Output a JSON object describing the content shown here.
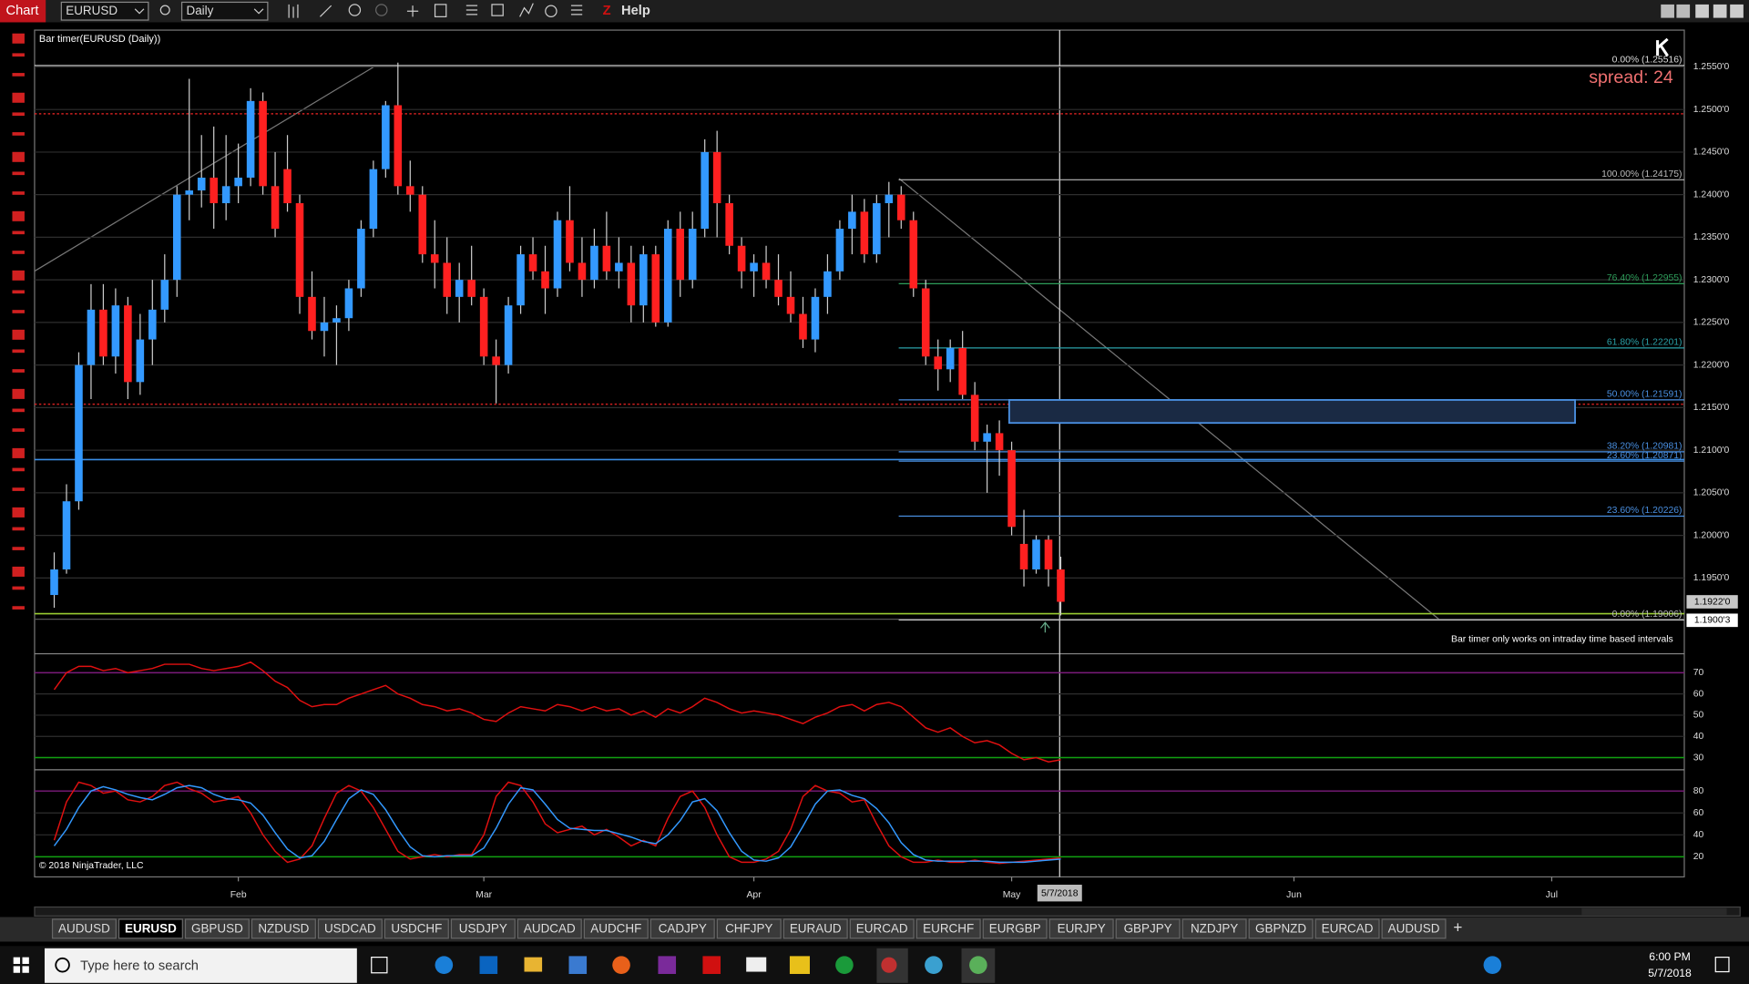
{
  "toolbar": {
    "title": "Chart",
    "instrument": "EURUSD",
    "interval": "Daily",
    "help": "Help"
  },
  "chart": {
    "type": "candlestick",
    "indicator_label": "Bar timer(EURUSD (Daily))",
    "spread": "spread: 24",
    "notice": "Bar timer only works on intraday time based intervals",
    "copyright": "© 2018 NinjaTrader, LLC",
    "cursor_date": "5/7/2018",
    "xlim": [
      -1.6,
      132.8
    ],
    "xticks": [
      {
        "value": 15,
        "label": "Feb"
      },
      {
        "value": 35,
        "label": "Mar"
      },
      {
        "value": 57,
        "label": "Apr"
      },
      {
        "value": 78,
        "label": "May"
      },
      {
        "value": 101,
        "label": "Jun"
      },
      {
        "value": 122,
        "label": "Jul"
      }
    ],
    "ylim": [
      1.18623,
      1.25932
    ],
    "yticks": [
      {
        "value": 1.255,
        "label": "1.2550'0"
      },
      {
        "value": 1.25,
        "label": "1.2500'0"
      },
      {
        "value": 1.245,
        "label": "1.2450'0"
      },
      {
        "value": 1.24,
        "label": "1.2400'0"
      },
      {
        "value": 1.235,
        "label": "1.2350'0"
      },
      {
        "value": 1.23,
        "label": "1.2300'0"
      },
      {
        "value": 1.225,
        "label": "1.2250'0"
      },
      {
        "value": 1.22,
        "label": "1.2200'0"
      },
      {
        "value": 1.215,
        "label": "1.2150'0"
      },
      {
        "value": 1.21,
        "label": "1.2100'0"
      },
      {
        "value": 1.205,
        "label": "1.2050'0"
      },
      {
        "value": 1.2,
        "label": "1.2000'0"
      },
      {
        "value": 1.195,
        "label": "1.1950'0"
      }
    ],
    "up_color": "#3399ff",
    "down_color": "#ff2020",
    "candles": [
      [
        1.193,
        1.198,
        1.1915,
        1.196
      ],
      [
        1.196,
        1.206,
        1.1955,
        1.204
      ],
      [
        1.204,
        1.2215,
        1.203,
        1.22
      ],
      [
        1.22,
        1.2295,
        1.216,
        1.2265
      ],
      [
        1.2265,
        1.2295,
        1.22,
        1.221
      ],
      [
        1.221,
        1.229,
        1.219,
        1.227
      ],
      [
        1.227,
        1.228,
        1.216,
        1.218
      ],
      [
        1.218,
        1.226,
        1.2165,
        1.223
      ],
      [
        1.223,
        1.23,
        1.22,
        1.2265
      ],
      [
        1.2265,
        1.233,
        1.225,
        1.23
      ],
      [
        1.23,
        1.241,
        1.228,
        1.24
      ],
      [
        1.24,
        1.2536,
        1.237,
        1.2405
      ],
      [
        1.2405,
        1.247,
        1.2385,
        1.242
      ],
      [
        1.242,
        1.248,
        1.236,
        1.239
      ],
      [
        1.239,
        1.247,
        1.237,
        1.241
      ],
      [
        1.241,
        1.246,
        1.239,
        1.242
      ],
      [
        1.242,
        1.2525,
        1.241,
        1.251
      ],
      [
        1.251,
        1.252,
        1.24,
        1.241
      ],
      [
        1.241,
        1.245,
        1.235,
        1.236
      ],
      [
        1.243,
        1.247,
        1.238,
        1.239
      ],
      [
        1.239,
        1.24,
        1.226,
        1.228
      ],
      [
        1.228,
        1.231,
        1.223,
        1.224
      ],
      [
        1.224,
        1.228,
        1.221,
        1.225
      ],
      [
        1.225,
        1.227,
        1.22,
        1.2255
      ],
      [
        1.2255,
        1.23,
        1.224,
        1.229
      ],
      [
        1.229,
        1.237,
        1.228,
        1.236
      ],
      [
        1.236,
        1.244,
        1.235,
        1.243
      ],
      [
        1.243,
        1.251,
        1.242,
        1.2505
      ],
      [
        1.2505,
        1.2555,
        1.24,
        1.241
      ],
      [
        1.241,
        1.244,
        1.238,
        1.24
      ],
      [
        1.24,
        1.241,
        1.232,
        1.233
      ],
      [
        1.233,
        1.237,
        1.229,
        1.232
      ],
      [
        1.232,
        1.235,
        1.226,
        1.228
      ],
      [
        1.228,
        1.232,
        1.225,
        1.23
      ],
      [
        1.23,
        1.234,
        1.227,
        1.228
      ],
      [
        1.228,
        1.229,
        1.22,
        1.221
      ],
      [
        1.221,
        1.223,
        1.2155,
        1.22
      ],
      [
        1.22,
        1.228,
        1.219,
        1.227
      ],
      [
        1.227,
        1.234,
        1.226,
        1.233
      ],
      [
        1.233,
        1.235,
        1.23,
        1.231
      ],
      [
        1.231,
        1.234,
        1.226,
        1.229
      ],
      [
        1.229,
        1.238,
        1.228,
        1.237
      ],
      [
        1.237,
        1.241,
        1.231,
        1.232
      ],
      [
        1.232,
        1.235,
        1.228,
        1.23
      ],
      [
        1.23,
        1.236,
        1.229,
        1.234
      ],
      [
        1.234,
        1.238,
        1.23,
        1.231
      ],
      [
        1.231,
        1.235,
        1.229,
        1.232
      ],
      [
        1.232,
        1.234,
        1.225,
        1.227
      ],
      [
        1.227,
        1.234,
        1.225,
        1.233
      ],
      [
        1.233,
        1.234,
        1.2245,
        1.225
      ],
      [
        1.225,
        1.237,
        1.2245,
        1.236
      ],
      [
        1.236,
        1.238,
        1.228,
        1.23
      ],
      [
        1.23,
        1.238,
        1.229,
        1.236
      ],
      [
        1.236,
        1.2465,
        1.235,
        1.245
      ],
      [
        1.245,
        1.2475,
        1.235,
        1.239
      ],
      [
        1.239,
        1.24,
        1.233,
        1.234
      ],
      [
        1.234,
        1.235,
        1.229,
        1.231
      ],
      [
        1.231,
        1.233,
        1.228,
        1.232
      ],
      [
        1.232,
        1.234,
        1.229,
        1.23
      ],
      [
        1.23,
        1.233,
        1.227,
        1.228
      ],
      [
        1.228,
        1.231,
        1.225,
        1.226
      ],
      [
        1.226,
        1.228,
        1.222,
        1.223
      ],
      [
        1.223,
        1.229,
        1.2215,
        1.228
      ],
      [
        1.228,
        1.233,
        1.226,
        1.231
      ],
      [
        1.231,
        1.237,
        1.23,
        1.236
      ],
      [
        1.236,
        1.24,
        1.233,
        1.238
      ],
      [
        1.238,
        1.2395,
        1.232,
        1.233
      ],
      [
        1.233,
        1.24,
        1.232,
        1.239
      ],
      [
        1.239,
        1.2415,
        1.235,
        1.24
      ],
      [
        1.24,
        1.241,
        1.236,
        1.237
      ],
      [
        1.237,
        1.238,
        1.228,
        1.229
      ],
      [
        1.229,
        1.23,
        1.22,
        1.221
      ],
      [
        1.221,
        1.223,
        1.217,
        1.2195
      ],
      [
        1.2195,
        1.223,
        1.218,
        1.222
      ],
      [
        1.222,
        1.224,
        1.216,
        1.2165
      ],
      [
        1.2165,
        1.218,
        1.21,
        1.211
      ],
      [
        1.211,
        1.213,
        1.205,
        1.212
      ],
      [
        1.212,
        1.2135,
        1.207,
        1.21
      ],
      [
        1.21,
        1.211,
        1.2,
        1.201
      ],
      [
        1.199,
        1.203,
        1.194,
        1.196
      ],
      [
        1.196,
        1.2,
        1.1955,
        1.1995
      ],
      [
        1.1995,
        1.2,
        1.194,
        1.196
      ],
      [
        1.196,
        1.1975,
        1.1906,
        1.1922
      ]
    ],
    "price_markers": [
      {
        "value": 1.1922,
        "label": "1.1922'0",
        "color": "#c8c8c8"
      },
      {
        "value": 1.19003,
        "label": "1.1900'3",
        "color": "#ffffff"
      }
    ],
    "hlines": [
      {
        "value": 1.2495,
        "color": "#d02020",
        "dash": true
      },
      {
        "value": 1.2154,
        "color": "#d02020",
        "dash": true
      },
      {
        "value": 1.2089,
        "color": "#3a8ee6",
        "dash": false
      },
      {
        "value": 1.1908,
        "color": "#9acd32",
        "dash": false
      }
    ],
    "fib": [
      {
        "label": "0.00% (1.25516)",
        "value": 1.25516,
        "color": "#dddddd",
        "from": -1.6
      },
      {
        "label": "100.00% (1.24175)",
        "value": 1.24175,
        "color": "#bbbbbb",
        "from": 68.8
      },
      {
        "label": "76.40% (1.22955)",
        "value": 1.22955,
        "color": "#2e9e5b",
        "from": 68.8
      },
      {
        "label": "61.80% (1.22201)",
        "value": 1.22201,
        "color": "#2aa1a8",
        "from": 68.8
      },
      {
        "label": "50.00% (1.21591)",
        "value": 1.21591,
        "color": "#4a90e2",
        "from": 68.8
      },
      {
        "label": "38.20% (1.20981)",
        "value": 1.20981,
        "color": "#4a90e2",
        "from": 68.8
      },
      {
        "label": "23.60% (1.20871)",
        "value": 1.20871,
        "color": "#4a90e2",
        "from": 68.8
      },
      {
        "label": "23.60% (1.20226)",
        "value": 1.20226,
        "color": "#4a90e2",
        "from": 68.8
      },
      {
        "label": "0.00% (1.19006)",
        "value": 1.19006,
        "color": "#bbbbbb",
        "from": 68.8
      }
    ],
    "zone": {
      "from": 77.8,
      "to": 123.9,
      "top": 1.2159,
      "bottom": 1.2132,
      "color": "#4a90e2"
    },
    "rsi": {
      "ylim": [
        25.3,
        77.9
      ],
      "yticks": [
        30,
        40,
        50,
        60,
        70
      ],
      "color": "#e01010",
      "levels": [
        {
          "value": 70,
          "color": "#7a1a7a"
        },
        {
          "value": 30,
          "color": "#10a010"
        }
      ],
      "values": [
        62,
        70,
        73,
        73,
        71,
        72,
        70,
        71,
        72,
        74,
        74,
        74,
        72,
        71,
        72,
        73,
        75,
        71,
        66,
        63,
        57,
        54,
        55,
        55,
        58,
        60,
        62,
        64,
        60,
        58,
        55,
        54,
        52,
        53,
        51,
        48,
        47,
        51,
        54,
        53,
        52,
        55,
        54,
        52,
        54,
        52,
        53,
        50,
        52,
        49,
        53,
        51,
        54,
        58,
        56,
        53,
        51,
        52,
        51,
        50,
        48,
        46,
        49,
        51,
        54,
        55,
        52,
        55,
        56,
        54,
        49,
        44,
        42,
        44,
        40,
        37,
        38,
        36,
        32,
        29,
        30,
        28,
        29
      ]
    },
    "stoch": {
      "ylim": [
        2.7,
        97.3
      ],
      "yticks": [
        20,
        40,
        60,
        80
      ],
      "levels": [
        {
          "value": 80,
          "color": "#7a1a7a"
        },
        {
          "value": 20,
          "color": "#10a010"
        }
      ],
      "series": [
        {
          "color": "#e01010",
          "values": [
            35,
            70,
            88,
            85,
            78,
            80,
            72,
            70,
            75,
            85,
            88,
            82,
            78,
            70,
            72,
            75,
            60,
            40,
            25,
            15,
            18,
            30,
            55,
            78,
            85,
            80,
            65,
            45,
            25,
            18,
            20,
            22,
            20,
            22,
            22,
            40,
            75,
            88,
            85,
            70,
            50,
            42,
            45,
            48,
            40,
            45,
            38,
            30,
            35,
            30,
            55,
            75,
            80,
            65,
            40,
            20,
            15,
            15,
            18,
            25,
            45,
            75,
            85,
            80,
            78,
            70,
            72,
            50,
            30,
            20,
            15,
            15,
            17,
            15,
            15,
            17,
            15,
            14,
            15,
            16,
            17,
            18,
            19
          ]
        },
        {
          "color": "#3399ff",
          "values": [
            30,
            45,
            65,
            80,
            84,
            81,
            77,
            74,
            72,
            77,
            83,
            85,
            83,
            77,
            73,
            72,
            69,
            58,
            42,
            27,
            19,
            21,
            34,
            54,
            73,
            81,
            77,
            63,
            45,
            29,
            21,
            20,
            21,
            21,
            21,
            28,
            46,
            68,
            83,
            81,
            68,
            54,
            46,
            45,
            44,
            44,
            41,
            38,
            34,
            32,
            40,
            53,
            70,
            73,
            62,
            42,
            25,
            17,
            16,
            19,
            29,
            48,
            68,
            80,
            81,
            76,
            73,
            64,
            51,
            33,
            22,
            17,
            16,
            16,
            16,
            16,
            16,
            15,
            15,
            15,
            16,
            17,
            18
          ]
        }
      ]
    }
  },
  "tabs": {
    "active": 1,
    "items": [
      "AUDUSD",
      "EURUSD",
      "GBPUSD",
      "NZDUSD",
      "USDCAD",
      "USDCHF",
      "USDJPY",
      "AUDCAD",
      "AUDCHF",
      "CADJPY",
      "CHFJPY",
      "EURAUD",
      "EURCAD",
      "EURCHF",
      "EURGBP",
      "EURJPY",
      "GBPJPY",
      "NZDJPY",
      "GBPNZD",
      "EURCAD",
      "AUDUSD"
    ]
  },
  "taskbar": {
    "search": "Type here to search",
    "time": "6:00 PM",
    "date": "5/7/2018"
  }
}
